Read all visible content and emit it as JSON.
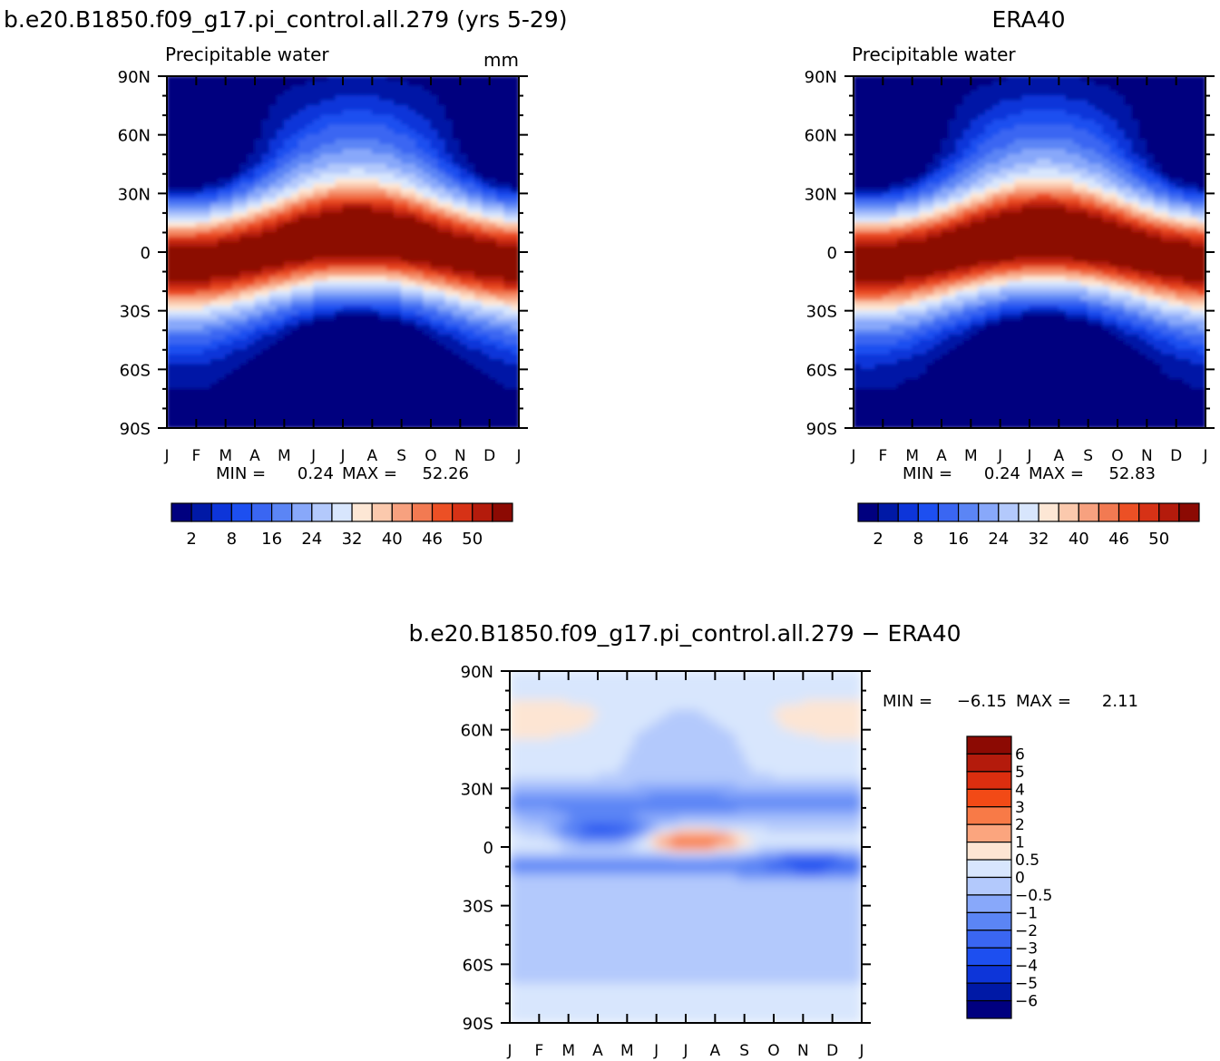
{
  "chart_data": [
    {
      "type": "heatmap",
      "title": "b.e20.B1850.f09_g17.pi_control.all.279 (yrs 5-29)",
      "subtitle": "Precipitable water",
      "units": "mm",
      "x_ticks": [
        "J",
        "F",
        "M",
        "A",
        "M",
        "J",
        "J",
        "A",
        "S",
        "O",
        "N",
        "D",
        "J"
      ],
      "y_ticks": [
        "90N",
        "60N",
        "30N",
        "0",
        "30S",
        "60S",
        "90S"
      ],
      "min_label": "MIN =",
      "min_value": "0.24",
      "max_label": "MAX =",
      "max_value": "52.26",
      "colorbar_labels": [
        "2",
        "8",
        "16",
        "24",
        "32",
        "40",
        "46",
        "50"
      ],
      "colors": [
        "#00007f",
        "#0019a6",
        "#0d35d9",
        "#1d4ff0",
        "#3a66f2",
        "#5b85f5",
        "#88a8fa",
        "#b3c9fc",
        "#d8e6fd",
        "#fde7d5",
        "#fbc9ad",
        "#f7a17f",
        "#f27a52",
        "#ec5025",
        "#d63216",
        "#b41b0c",
        "#8c0a03"
      ],
      "peak_nh_summer": 52.26,
      "min_polar": 0.24
    },
    {
      "type": "heatmap",
      "title": "ERA40",
      "subtitle": "Precipitable water",
      "x_ticks": [
        "J",
        "F",
        "M",
        "A",
        "M",
        "J",
        "J",
        "A",
        "S",
        "O",
        "N",
        "D",
        "J"
      ],
      "y_ticks": [
        "90N",
        "60N",
        "30N",
        "0",
        "30S",
        "60S",
        "90S"
      ],
      "min_label": "MIN =",
      "min_value": "0.24",
      "max_label": "MAX =",
      "max_value": "52.83",
      "colorbar_labels": [
        "2",
        "8",
        "16",
        "24",
        "32",
        "40",
        "46",
        "50"
      ],
      "colors": [
        "#00007f",
        "#0019a6",
        "#0d35d9",
        "#1d4ff0",
        "#3a66f2",
        "#5b85f5",
        "#88a8fa",
        "#b3c9fc",
        "#d8e6fd",
        "#fde7d5",
        "#fbc9ad",
        "#f7a17f",
        "#f27a52",
        "#ec5025",
        "#d63216",
        "#b41b0c",
        "#8c0a03"
      ]
    },
    {
      "type": "heatmap",
      "title": "b.e20.B1850.f09_g17.pi_control.all.279 − ERA40",
      "x_ticks": [
        "J",
        "F",
        "M",
        "A",
        "M",
        "J",
        "J",
        "A",
        "S",
        "O",
        "N",
        "D",
        "J"
      ],
      "y_ticks": [
        "90N",
        "60N",
        "30N",
        "0",
        "30S",
        "60S",
        "90S"
      ],
      "min_label": "MIN =",
      "min_value": "−6.15",
      "max_label": "MAX =",
      "max_value": "2.11",
      "colorbar_labels": [
        "6",
        "5",
        "4",
        "3",
        "2",
        "1",
        "0.5",
        "0",
        "−0.5",
        "−1",
        "−2",
        "−3",
        "−4",
        "−5",
        "−6"
      ],
      "colors": [
        "#8c0a03",
        "#b41b0c",
        "#dc2e0f",
        "#f24a16",
        "#f87a47",
        "#fba57e",
        "#fde5d3",
        "#d8e6fd",
        "#b3c9fc",
        "#88a8fa",
        "#5b85f5",
        "#3a66f2",
        "#1d4ff0",
        "#0d35d9",
        "#0019a6",
        "#00007f"
      ]
    }
  ]
}
